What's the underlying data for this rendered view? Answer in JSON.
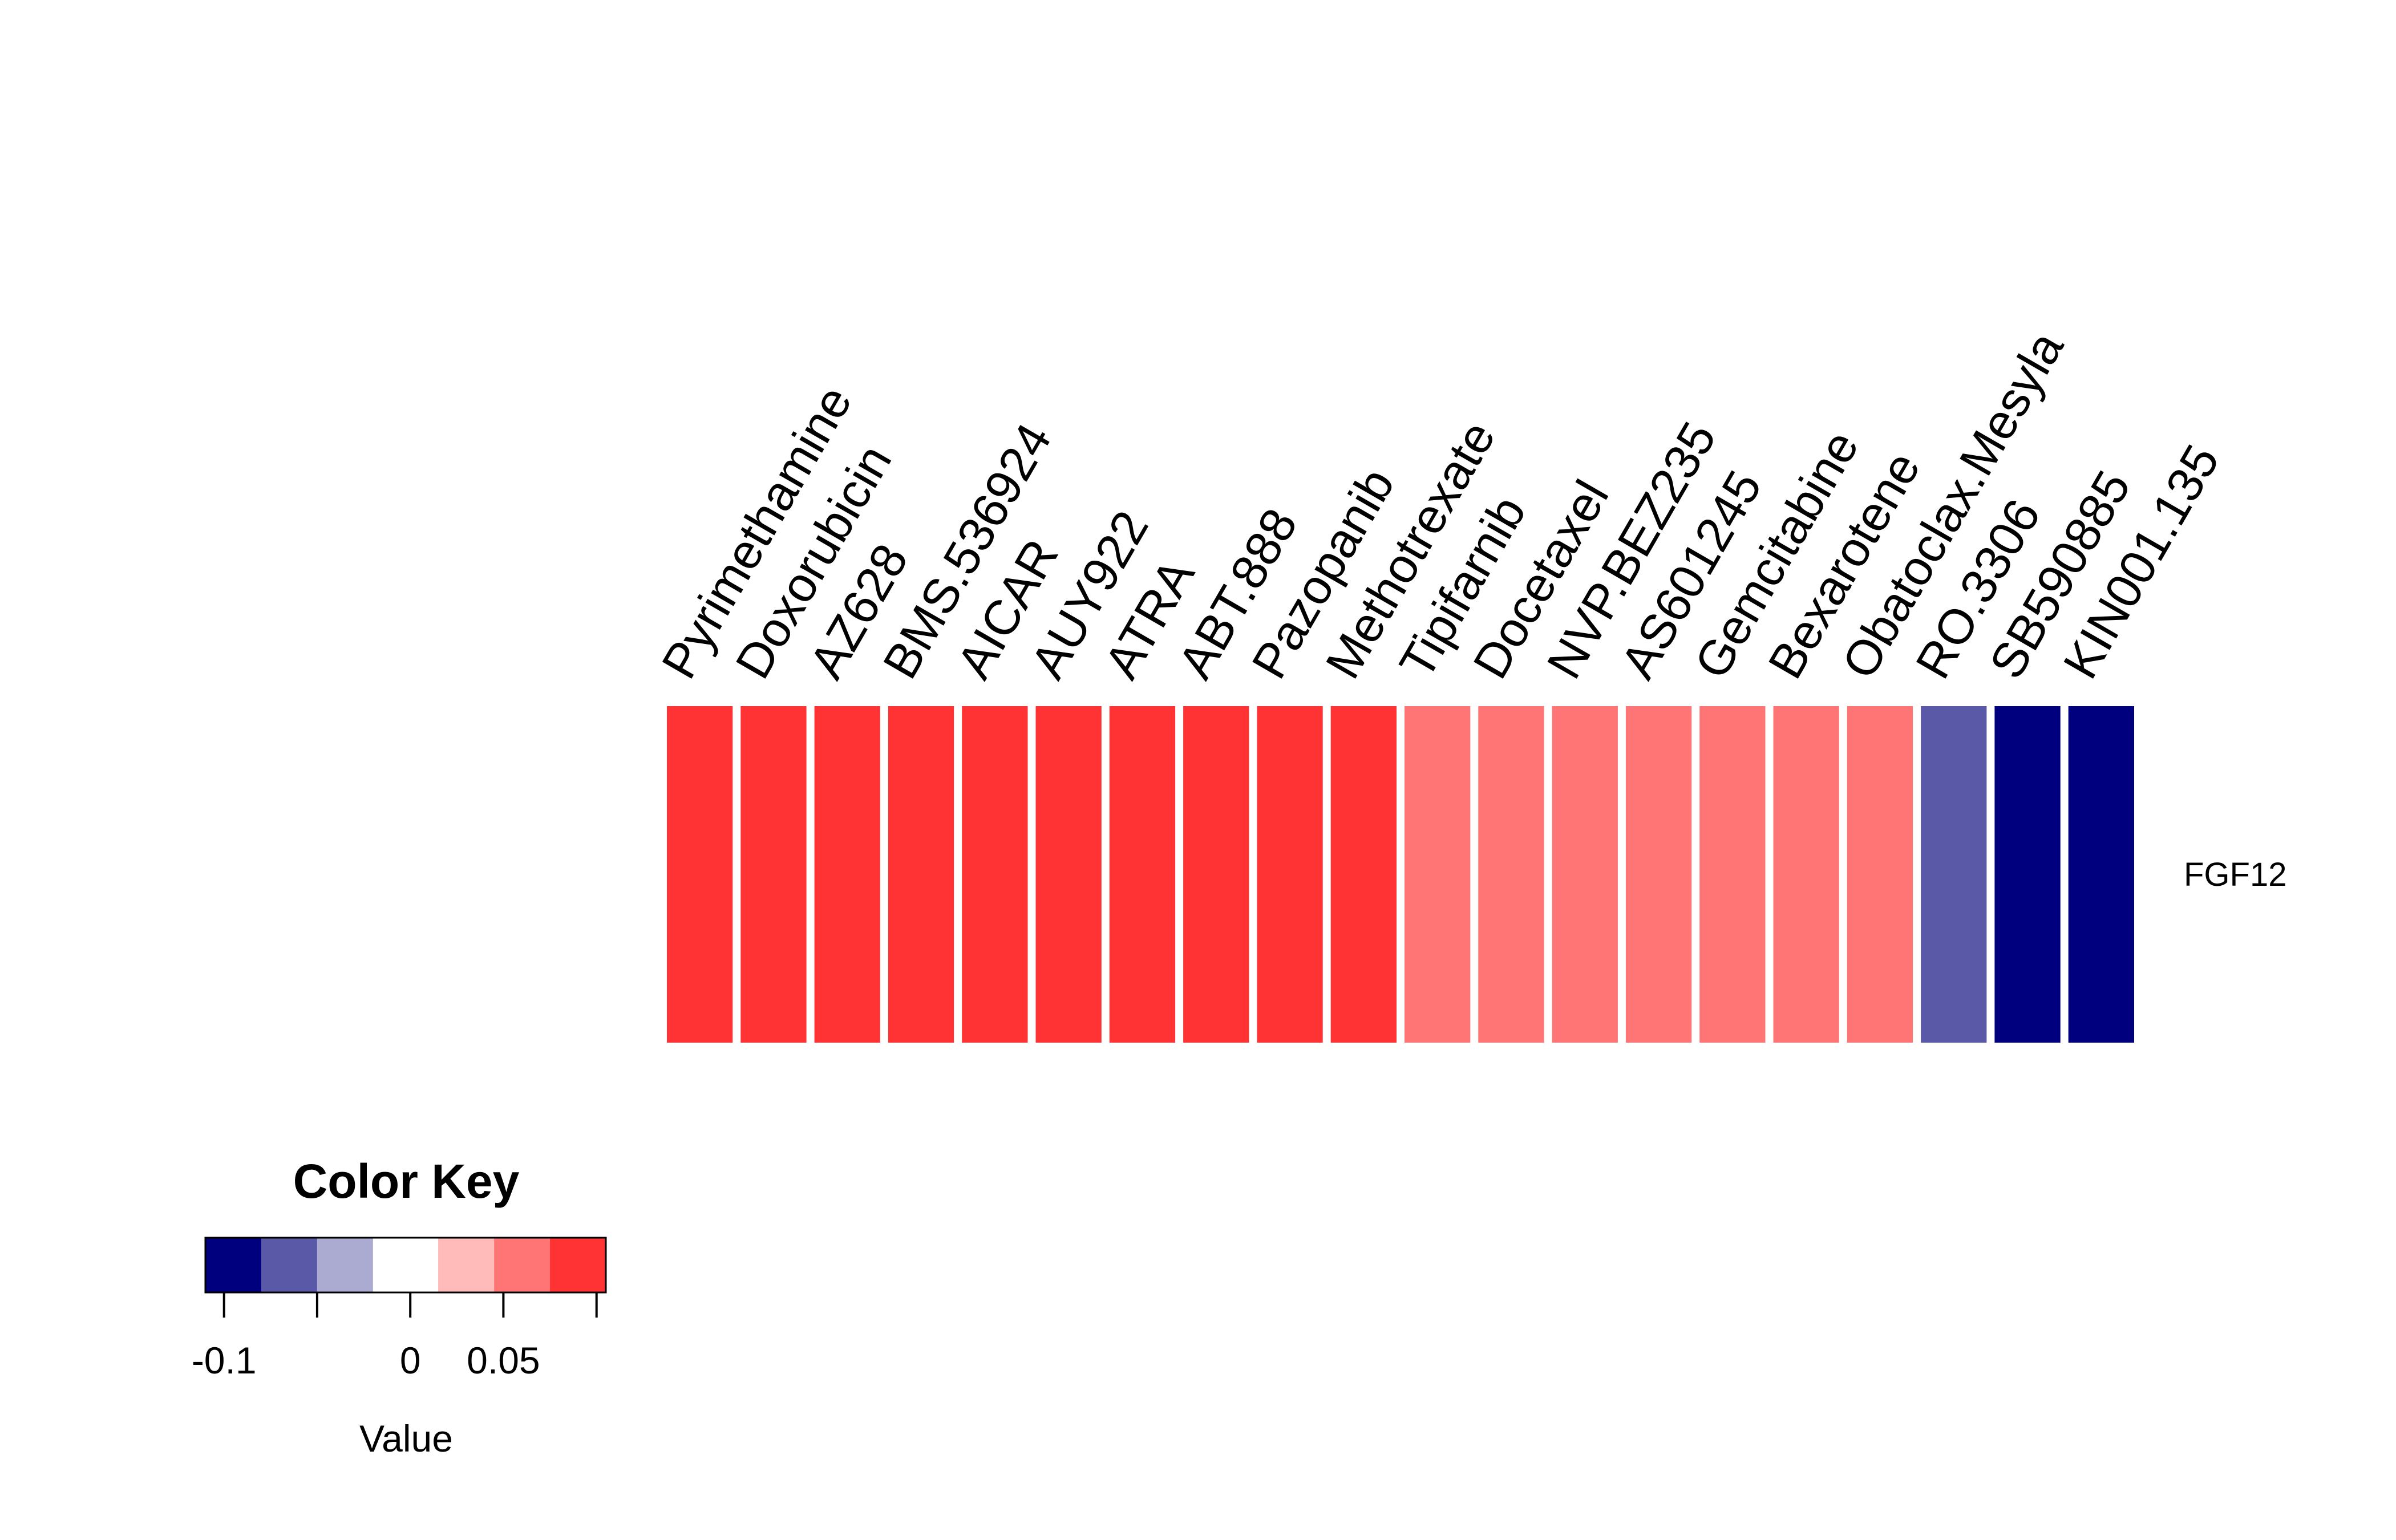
{
  "chart_data": {
    "type": "heatmap",
    "rows": [
      "FGF12"
    ],
    "columns": [
      "Pyrimethamine",
      "Doxorubicin",
      "AZ628",
      "BMS.536924",
      "AICAR",
      "AUY922",
      "ATRA",
      "ABT.888",
      "Pazopanib",
      "Methotrexate",
      "Tipifarnib",
      "Docetaxel",
      "NVP.BEZ235",
      "AS601245",
      "Gemcitabine",
      "Bexarotene",
      "Obatoclax.Mesyla",
      "RO.3306",
      "SB590885",
      "KIN001.135"
    ],
    "values": [
      [
        0.085,
        0.085,
        0.085,
        0.085,
        0.085,
        0.085,
        0.085,
        0.085,
        0.085,
        0.085,
        0.05,
        0.05,
        0.05,
        0.05,
        0.05,
        0.05,
        0.05,
        -0.075,
        -0.11,
        -0.11
      ]
    ],
    "color_key": {
      "title": "Color Key",
      "xlabel": "Value",
      "range": [
        -0.11,
        0.105
      ],
      "breaks": [
        -0.11,
        -0.08,
        -0.05,
        -0.02,
        0.015,
        0.045,
        0.075,
        0.105
      ],
      "colors": [
        "#00007F",
        "#5959A8",
        "#ABABD2",
        "#FFFFFF",
        "#FFBABA",
        "#FF7575",
        "#FF3333"
      ],
      "ticks": [
        -0.1,
        -0.05,
        0,
        0.05,
        0.1
      ],
      "tick_labels": [
        "-0.1",
        "",
        "0",
        "0.05",
        ""
      ]
    }
  }
}
